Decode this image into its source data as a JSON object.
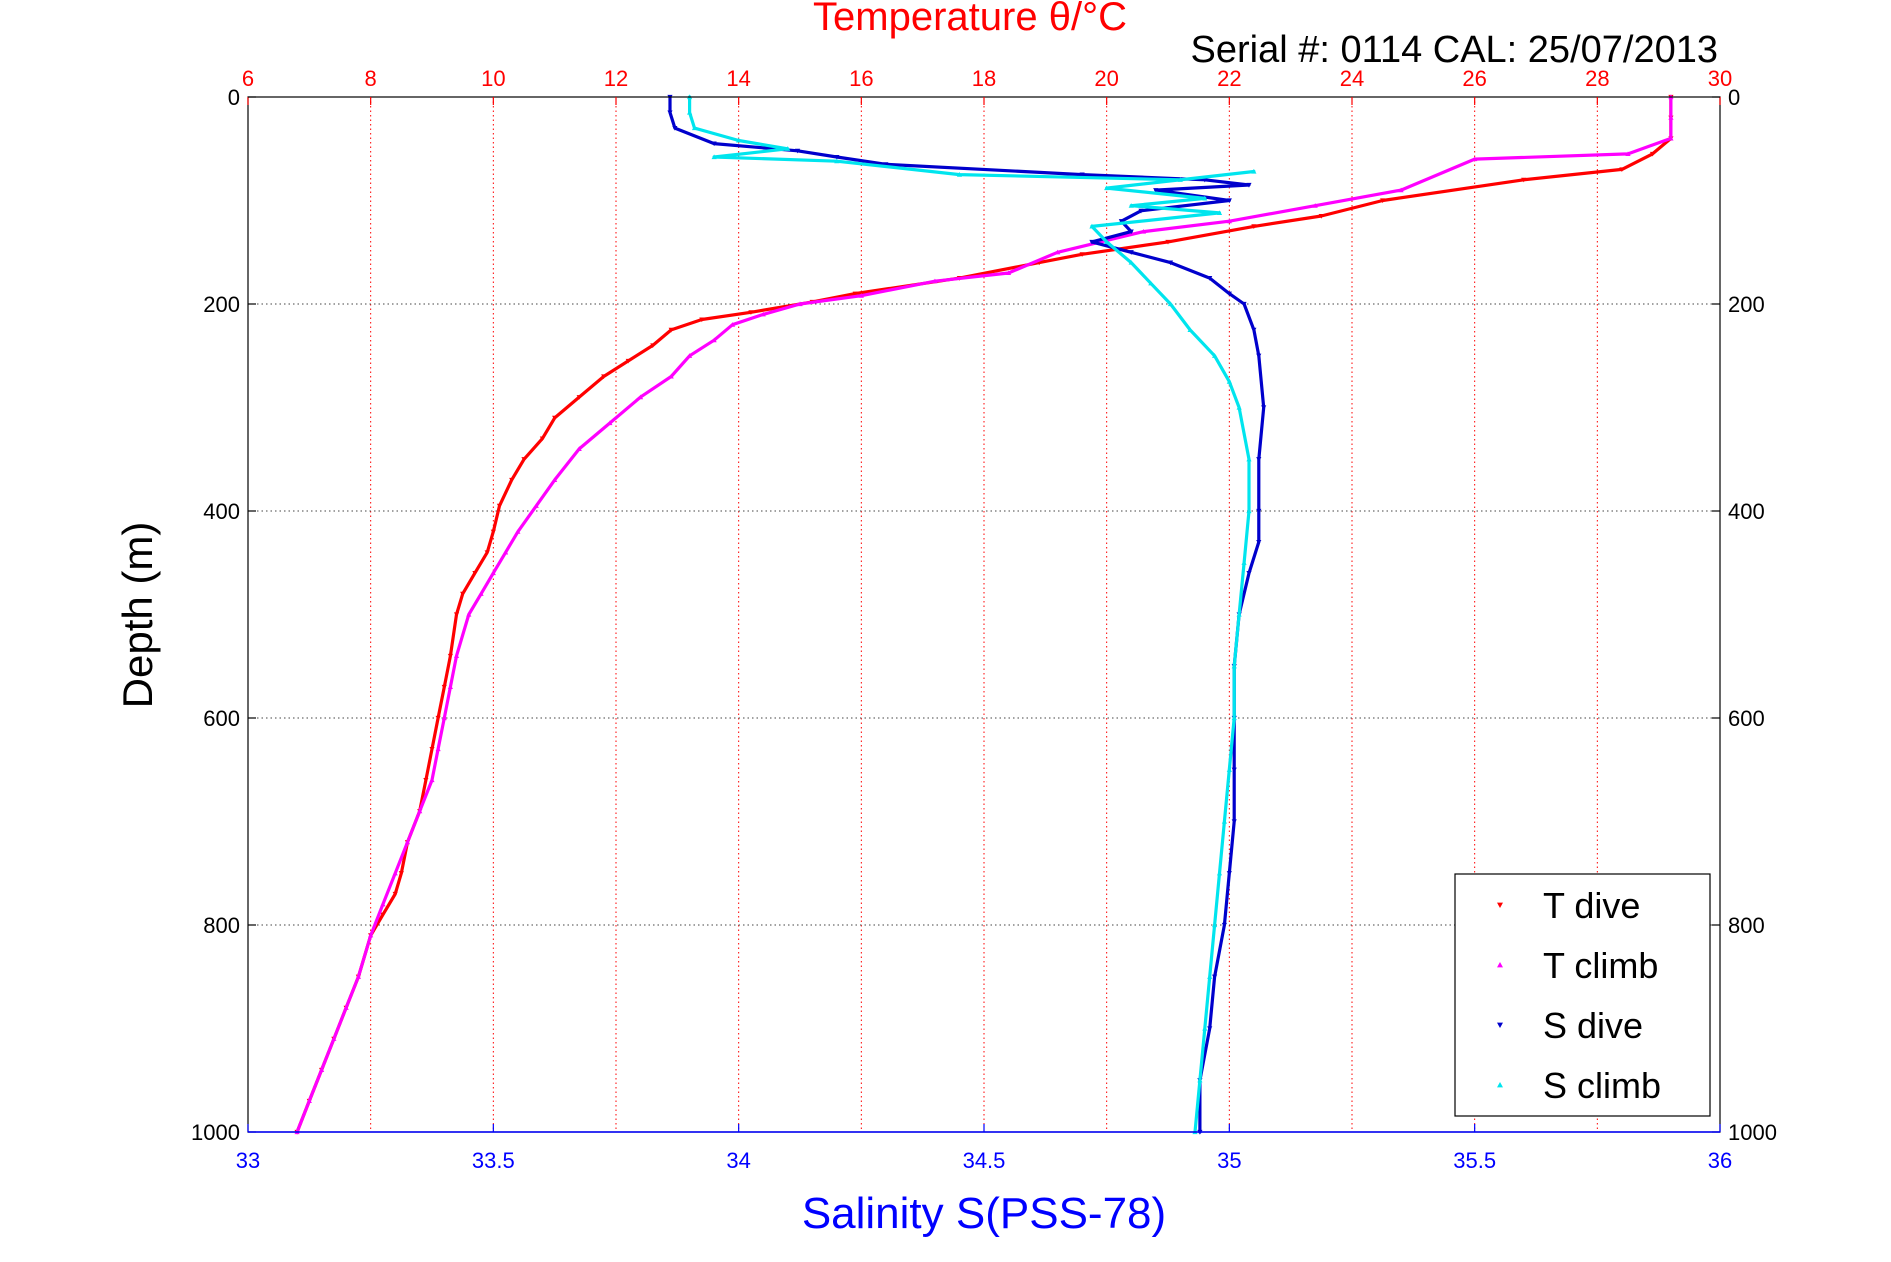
{
  "chart_data": {
    "type": "scatter",
    "title_top": "Temperature θ/°C",
    "serial_label": "Serial #: 0114  CAL: 25/07/2013",
    "ylabel": "Depth (m)",
    "xlabel_bottom": "Salinity S(PSS-78)",
    "ylim": [
      0,
      1000
    ],
    "y_reversed": true,
    "yticks": [
      "0",
      "200",
      "400",
      "600",
      "800",
      "1000"
    ],
    "xlim_temperature": [
      6,
      30
    ],
    "xticks_temperature": [
      "6",
      "8",
      "10",
      "12",
      "14",
      "16",
      "18",
      "20",
      "22",
      "24",
      "26",
      "28",
      "30"
    ],
    "xlim_salinity": [
      33,
      36
    ],
    "xticks_salinity": [
      "33",
      "33.5",
      "34",
      "34.5",
      "35",
      "35.5",
      "36"
    ],
    "grid": "on (vertical red dotted at temperature ticks, horizontal black dotted at depth ticks)",
    "legend_position": "bottom-right",
    "colors": {
      "temperature_axis": "#ff0000",
      "salinity_axis": "#0000ff",
      "t_dive": "#ff0000",
      "t_climb": "#ff00ff",
      "s_dive": "#0000cc",
      "s_climb": "#00e5ee"
    },
    "series": [
      {
        "name": "T dive",
        "axis": "temperature",
        "marker": "triangle-down",
        "points": [
          [
            29.2,
            0
          ],
          [
            29.2,
            20
          ],
          [
            29.2,
            40
          ],
          [
            28.9,
            55
          ],
          [
            28.4,
            70
          ],
          [
            26.8,
            80
          ],
          [
            24.5,
            100
          ],
          [
            23.5,
            115
          ],
          [
            22.4,
            125
          ],
          [
            21.0,
            140
          ],
          [
            19.6,
            152
          ],
          [
            18.9,
            160
          ],
          [
            17.6,
            175
          ],
          [
            15.9,
            190
          ],
          [
            15.2,
            198
          ],
          [
            14.2,
            208
          ],
          [
            13.4,
            215
          ],
          [
            12.9,
            225
          ],
          [
            12.6,
            240
          ],
          [
            12.2,
            255
          ],
          [
            11.8,
            270
          ],
          [
            11.4,
            290
          ],
          [
            11.0,
            310
          ],
          [
            10.8,
            330
          ],
          [
            10.5,
            350
          ],
          [
            10.3,
            370
          ],
          [
            10.1,
            395
          ],
          [
            10.0,
            420
          ],
          [
            9.9,
            440
          ],
          [
            9.7,
            460
          ],
          [
            9.5,
            480
          ],
          [
            9.4,
            500
          ],
          [
            9.3,
            540
          ],
          [
            9.2,
            570
          ],
          [
            9.1,
            600
          ],
          [
            9.0,
            630
          ],
          [
            8.9,
            660
          ],
          [
            8.8,
            690
          ],
          [
            8.6,
            720
          ],
          [
            8.5,
            750
          ],
          [
            8.4,
            770
          ],
          [
            8.2,
            790
          ],
          [
            8.0,
            810
          ],
          [
            7.8,
            850
          ],
          [
            7.6,
            880
          ],
          [
            7.4,
            910
          ],
          [
            7.2,
            940
          ],
          [
            7.0,
            970
          ],
          [
            6.8,
            1000
          ]
        ]
      },
      {
        "name": "T climb",
        "axis": "temperature",
        "marker": "triangle-up",
        "points": [
          [
            29.2,
            0
          ],
          [
            29.2,
            20
          ],
          [
            29.2,
            40
          ],
          [
            28.5,
            55
          ],
          [
            26.0,
            60
          ],
          [
            24.8,
            90
          ],
          [
            23.4,
            105
          ],
          [
            22.0,
            120
          ],
          [
            20.6,
            130
          ],
          [
            19.2,
            150
          ],
          [
            18.4,
            170
          ],
          [
            17.2,
            178
          ],
          [
            16.0,
            192
          ],
          [
            15.0,
            200
          ],
          [
            14.4,
            210
          ],
          [
            13.9,
            220
          ],
          [
            13.6,
            235
          ],
          [
            13.2,
            250
          ],
          [
            12.9,
            270
          ],
          [
            12.4,
            290
          ],
          [
            11.9,
            315
          ],
          [
            11.4,
            340
          ],
          [
            11.0,
            370
          ],
          [
            10.7,
            395
          ],
          [
            10.4,
            420
          ],
          [
            10.2,
            440
          ],
          [
            10.0,
            460
          ],
          [
            9.8,
            480
          ],
          [
            9.6,
            500
          ],
          [
            9.4,
            540
          ],
          [
            9.3,
            570
          ],
          [
            9.2,
            600
          ],
          [
            9.1,
            630
          ],
          [
            9.0,
            660
          ],
          [
            8.8,
            690
          ],
          [
            8.6,
            720
          ],
          [
            8.4,
            750
          ],
          [
            8.2,
            780
          ],
          [
            8.0,
            810
          ],
          [
            7.8,
            850
          ],
          [
            7.6,
            880
          ],
          [
            7.4,
            910
          ],
          [
            7.2,
            940
          ],
          [
            7.0,
            970
          ],
          [
            6.8,
            1000
          ]
        ]
      },
      {
        "name": "S dive",
        "axis": "salinity",
        "marker": "triangle-down",
        "points": [
          [
            33.86,
            0
          ],
          [
            33.86,
            15
          ],
          [
            33.87,
            30
          ],
          [
            33.95,
            45
          ],
          [
            34.12,
            52
          ],
          [
            34.2,
            58
          ],
          [
            34.3,
            65
          ],
          [
            34.7,
            75
          ],
          [
            34.95,
            80
          ],
          [
            35.04,
            85
          ],
          [
            34.85,
            90
          ],
          [
            35.0,
            100
          ],
          [
            34.82,
            110
          ],
          [
            34.78,
            120
          ],
          [
            34.8,
            130
          ],
          [
            34.72,
            140
          ],
          [
            34.8,
            150
          ],
          [
            34.88,
            160
          ],
          [
            34.96,
            175
          ],
          [
            35.0,
            190
          ],
          [
            35.03,
            200
          ],
          [
            35.05,
            225
          ],
          [
            35.06,
            250
          ],
          [
            35.07,
            300
          ],
          [
            35.06,
            350
          ],
          [
            35.06,
            400
          ],
          [
            35.06,
            430
          ],
          [
            35.04,
            460
          ],
          [
            35.02,
            500
          ],
          [
            35.01,
            550
          ],
          [
            35.01,
            600
          ],
          [
            35.01,
            650
          ],
          [
            35.01,
            700
          ],
          [
            35.0,
            750
          ],
          [
            34.99,
            800
          ],
          [
            34.97,
            850
          ],
          [
            34.96,
            900
          ],
          [
            34.94,
            950
          ],
          [
            34.94,
            1000
          ]
        ]
      },
      {
        "name": "S climb",
        "axis": "salinity",
        "marker": "triangle-up",
        "points": [
          [
            33.9,
            0
          ],
          [
            33.9,
            15
          ],
          [
            33.91,
            30
          ],
          [
            34.0,
            42
          ],
          [
            34.1,
            50
          ],
          [
            33.95,
            58
          ],
          [
            34.2,
            62
          ],
          [
            34.45,
            75
          ],
          [
            34.9,
            80
          ],
          [
            35.05,
            72
          ],
          [
            34.75,
            88
          ],
          [
            34.95,
            98
          ],
          [
            34.8,
            105
          ],
          [
            34.98,
            112
          ],
          [
            34.72,
            125
          ],
          [
            34.75,
            140
          ],
          [
            34.8,
            160
          ],
          [
            34.84,
            180
          ],
          [
            34.88,
            200
          ],
          [
            34.92,
            225
          ],
          [
            34.97,
            250
          ],
          [
            35.0,
            275
          ],
          [
            35.02,
            300
          ],
          [
            35.04,
            350
          ],
          [
            35.04,
            400
          ],
          [
            35.03,
            450
          ],
          [
            35.02,
            500
          ],
          [
            35.01,
            550
          ],
          [
            35.01,
            600
          ],
          [
            35.0,
            650
          ],
          [
            34.99,
            700
          ],
          [
            34.98,
            750
          ],
          [
            34.97,
            800
          ],
          [
            34.96,
            850
          ],
          [
            34.95,
            900
          ],
          [
            34.94,
            950
          ],
          [
            34.93,
            1000
          ]
        ]
      }
    ]
  }
}
